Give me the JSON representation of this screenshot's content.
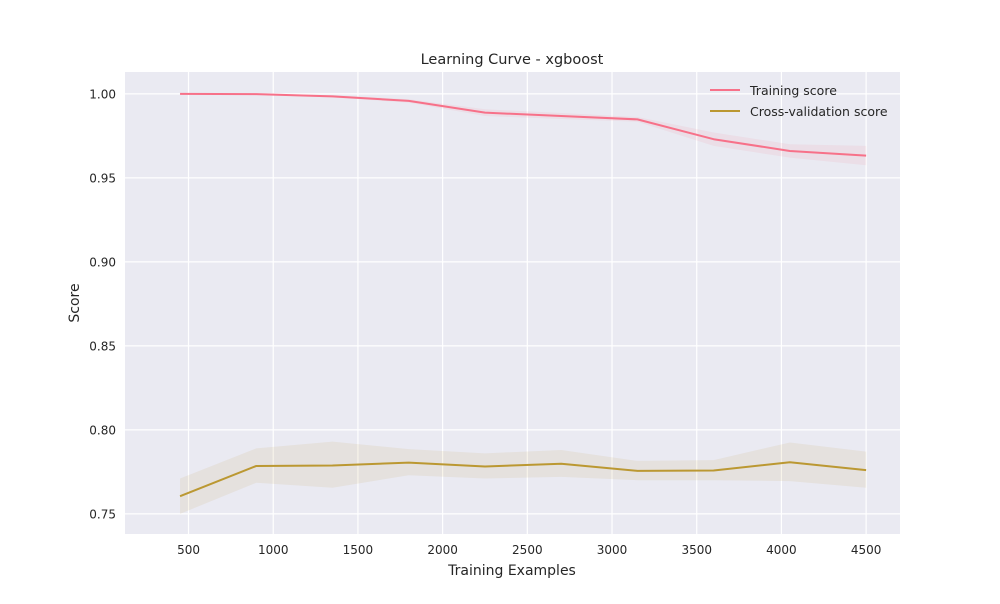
{
  "chart_data": {
    "type": "line",
    "title": "Learning Curve - xgboost",
    "xlabel": "Training Examples",
    "ylabel": "Score",
    "xlim": [
      125,
      4700
    ],
    "ylim": [
      0.738,
      1.013
    ],
    "xticks": [
      500,
      1000,
      1500,
      2000,
      2500,
      3000,
      3500,
      4000,
      4500
    ],
    "yticks": [
      0.75,
      0.8,
      0.85,
      0.9,
      0.95,
      1.0
    ],
    "xtick_labels": [
      "500",
      "1000",
      "1500",
      "2000",
      "2500",
      "3000",
      "3500",
      "4000",
      "4500"
    ],
    "ytick_labels": [
      "0.75",
      "0.80",
      "0.85",
      "0.90",
      "0.95",
      "1.00"
    ],
    "grid": true,
    "legend_position": "top-right",
    "x": [
      450,
      900,
      1350,
      1800,
      2250,
      2700,
      3150,
      3600,
      4050,
      4500
    ],
    "series": [
      {
        "name": "Training score",
        "color": "#f77189",
        "values": [
          1.0,
          0.9998,
          0.9985,
          0.9958,
          0.9888,
          0.9868,
          0.9848,
          0.973,
          0.966,
          0.9632
        ],
        "std_lower": [
          1.0,
          0.9996,
          0.9978,
          0.9948,
          0.9868,
          0.985,
          0.9834,
          0.969,
          0.962,
          0.9575
        ],
        "std_upper": [
          1.0,
          1.0,
          0.9992,
          0.9968,
          0.9908,
          0.9886,
          0.9862,
          0.977,
          0.97,
          0.969
        ]
      },
      {
        "name": "Cross-validation score",
        "color": "#bb9832",
        "values": [
          0.7605,
          0.7785,
          0.7788,
          0.7805,
          0.7782,
          0.7798,
          0.7756,
          0.7758,
          0.7807,
          0.776
        ],
        "std_lower": [
          0.75,
          0.7685,
          0.7655,
          0.773,
          0.771,
          0.772,
          0.77,
          0.77,
          0.7695,
          0.7655
        ],
        "std_upper": [
          0.771,
          0.789,
          0.793,
          0.7885,
          0.786,
          0.788,
          0.7815,
          0.782,
          0.7925,
          0.787
        ]
      }
    ]
  }
}
